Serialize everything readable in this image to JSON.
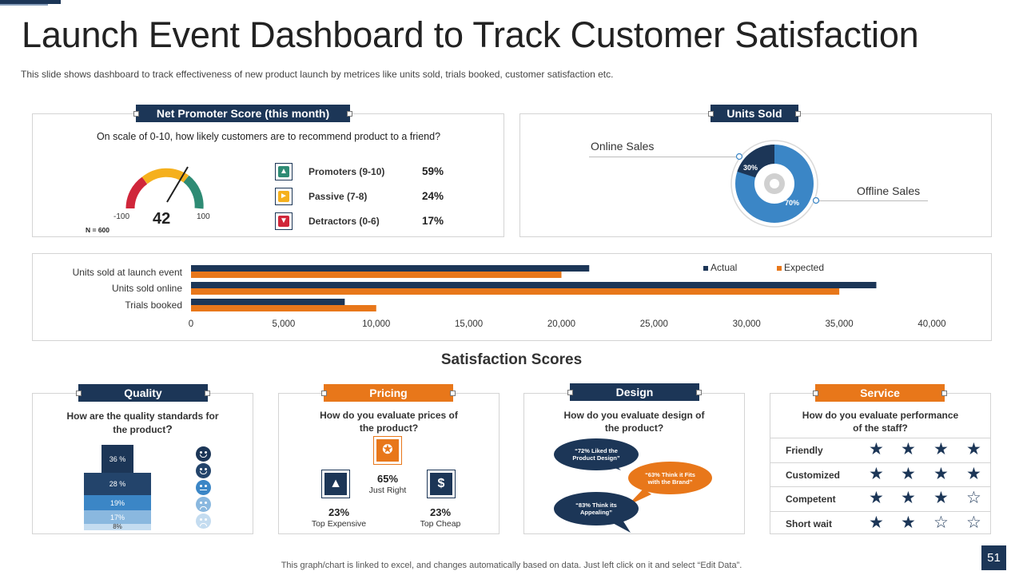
{
  "header": {
    "title": "Launch Event Dashboard to Track Customer Satisfaction",
    "subtitle": "This slide shows dashboard to track effectiveness  of new product launch by metrices like units sold, trials booked, customer satisfaction etc."
  },
  "nps": {
    "tag": "Net Promoter Score (this month)",
    "question": "On scale of 0-10, how likely customers are to recommend  product to a friend?",
    "score": "42",
    "min": "-100",
    "max": "100",
    "sample": "N = 600",
    "rows": [
      {
        "icon": "thumbs-up-icon",
        "label": "Promoters (9-10)",
        "pct": "59%",
        "color": "#2e8b74"
      },
      {
        "icon": "hand-point-icon",
        "label": "Passive (7-8)",
        "pct": "24%",
        "color": "#f5b01d"
      },
      {
        "icon": "thumbs-down-icon",
        "label": "Detractors (0-6)",
        "pct": "17%",
        "color": "#d0263a"
      }
    ]
  },
  "units_sold": {
    "tag": "Units Sold",
    "online_label": "Online Sales",
    "offline_label": "Offline Sales",
    "online_pct": "30%",
    "offline_pct": "70%"
  },
  "chart_data": {
    "type": "bar",
    "orientation": "horizontal",
    "categories": [
      "Units sold at launch event",
      "Units sold online",
      "Trials booked"
    ],
    "series": [
      {
        "name": "Actual",
        "color": "#1c3657",
        "values": [
          21500,
          37000,
          8300
        ]
      },
      {
        "name": "Expected",
        "color": "#e8771a",
        "values": [
          20000,
          35000,
          10000
        ]
      }
    ],
    "xlim": [
      0,
      40000
    ],
    "ticks": [
      "0",
      "5,000",
      "10,000",
      "15,000",
      "20,000",
      "25,000",
      "30,000",
      "35,000",
      "40,000"
    ],
    "tick_values": [
      0,
      5000,
      10000,
      15000,
      20000,
      25000,
      30000,
      35000,
      40000
    ],
    "legend": "top-right"
  },
  "satisfaction": {
    "title": "Satisfaction Scores",
    "quality": {
      "tag": "Quality",
      "question_line1": "How are the quality standards for",
      "question_line2": "the product",
      "question_mark": "?",
      "segments": [
        {
          "label": "36 %",
          "color": "#1c3657"
        },
        {
          "label": "28 %",
          "color": "#23446b"
        },
        {
          "label": "19%",
          "color": "#3b86c6"
        },
        {
          "label": "17%",
          "color": "#8ab8df"
        },
        {
          "label": "8%",
          "color": "#c4dcf0"
        }
      ],
      "faces": [
        "very-happy-face-icon",
        "happy-face-icon",
        "neutral-face-icon",
        "unhappy-face-icon",
        "sad-face-icon"
      ]
    },
    "pricing": {
      "tag": "Pricing",
      "question_line1": "How do you evaluate prices of",
      "question_line2": "the product?",
      "mid_pct": "65%",
      "mid_label": "Just Right",
      "left_pct": "23%",
      "left_label": "Top Expensive",
      "right_pct": "23%",
      "right_label": "Top Cheap"
    },
    "design": {
      "tag": "Design",
      "question_line1": "How do you evaluate design of",
      "question_line2": "the product?",
      "bubble1": "“72% Liked the Product Design”",
      "bubble2": "“63% Think it Fits with the Brand”",
      "bubble3": "“83% Think its Appealing”"
    },
    "service": {
      "tag": "Service",
      "question_line1": "How do you evaluate performance",
      "question_line2": "of the staff?",
      "rows": [
        {
          "label": "Friendly",
          "stars": 4
        },
        {
          "label": "Customized",
          "stars": 4
        },
        {
          "label": "Competent",
          "stars": 3
        },
        {
          "label": "Short wait",
          "stars": 2
        }
      ]
    }
  },
  "footer": {
    "note": "This graph/chart is linked to excel,  and changes automatically based on data. Just left click on it and select “Edit Data”.",
    "page_number": "51"
  }
}
